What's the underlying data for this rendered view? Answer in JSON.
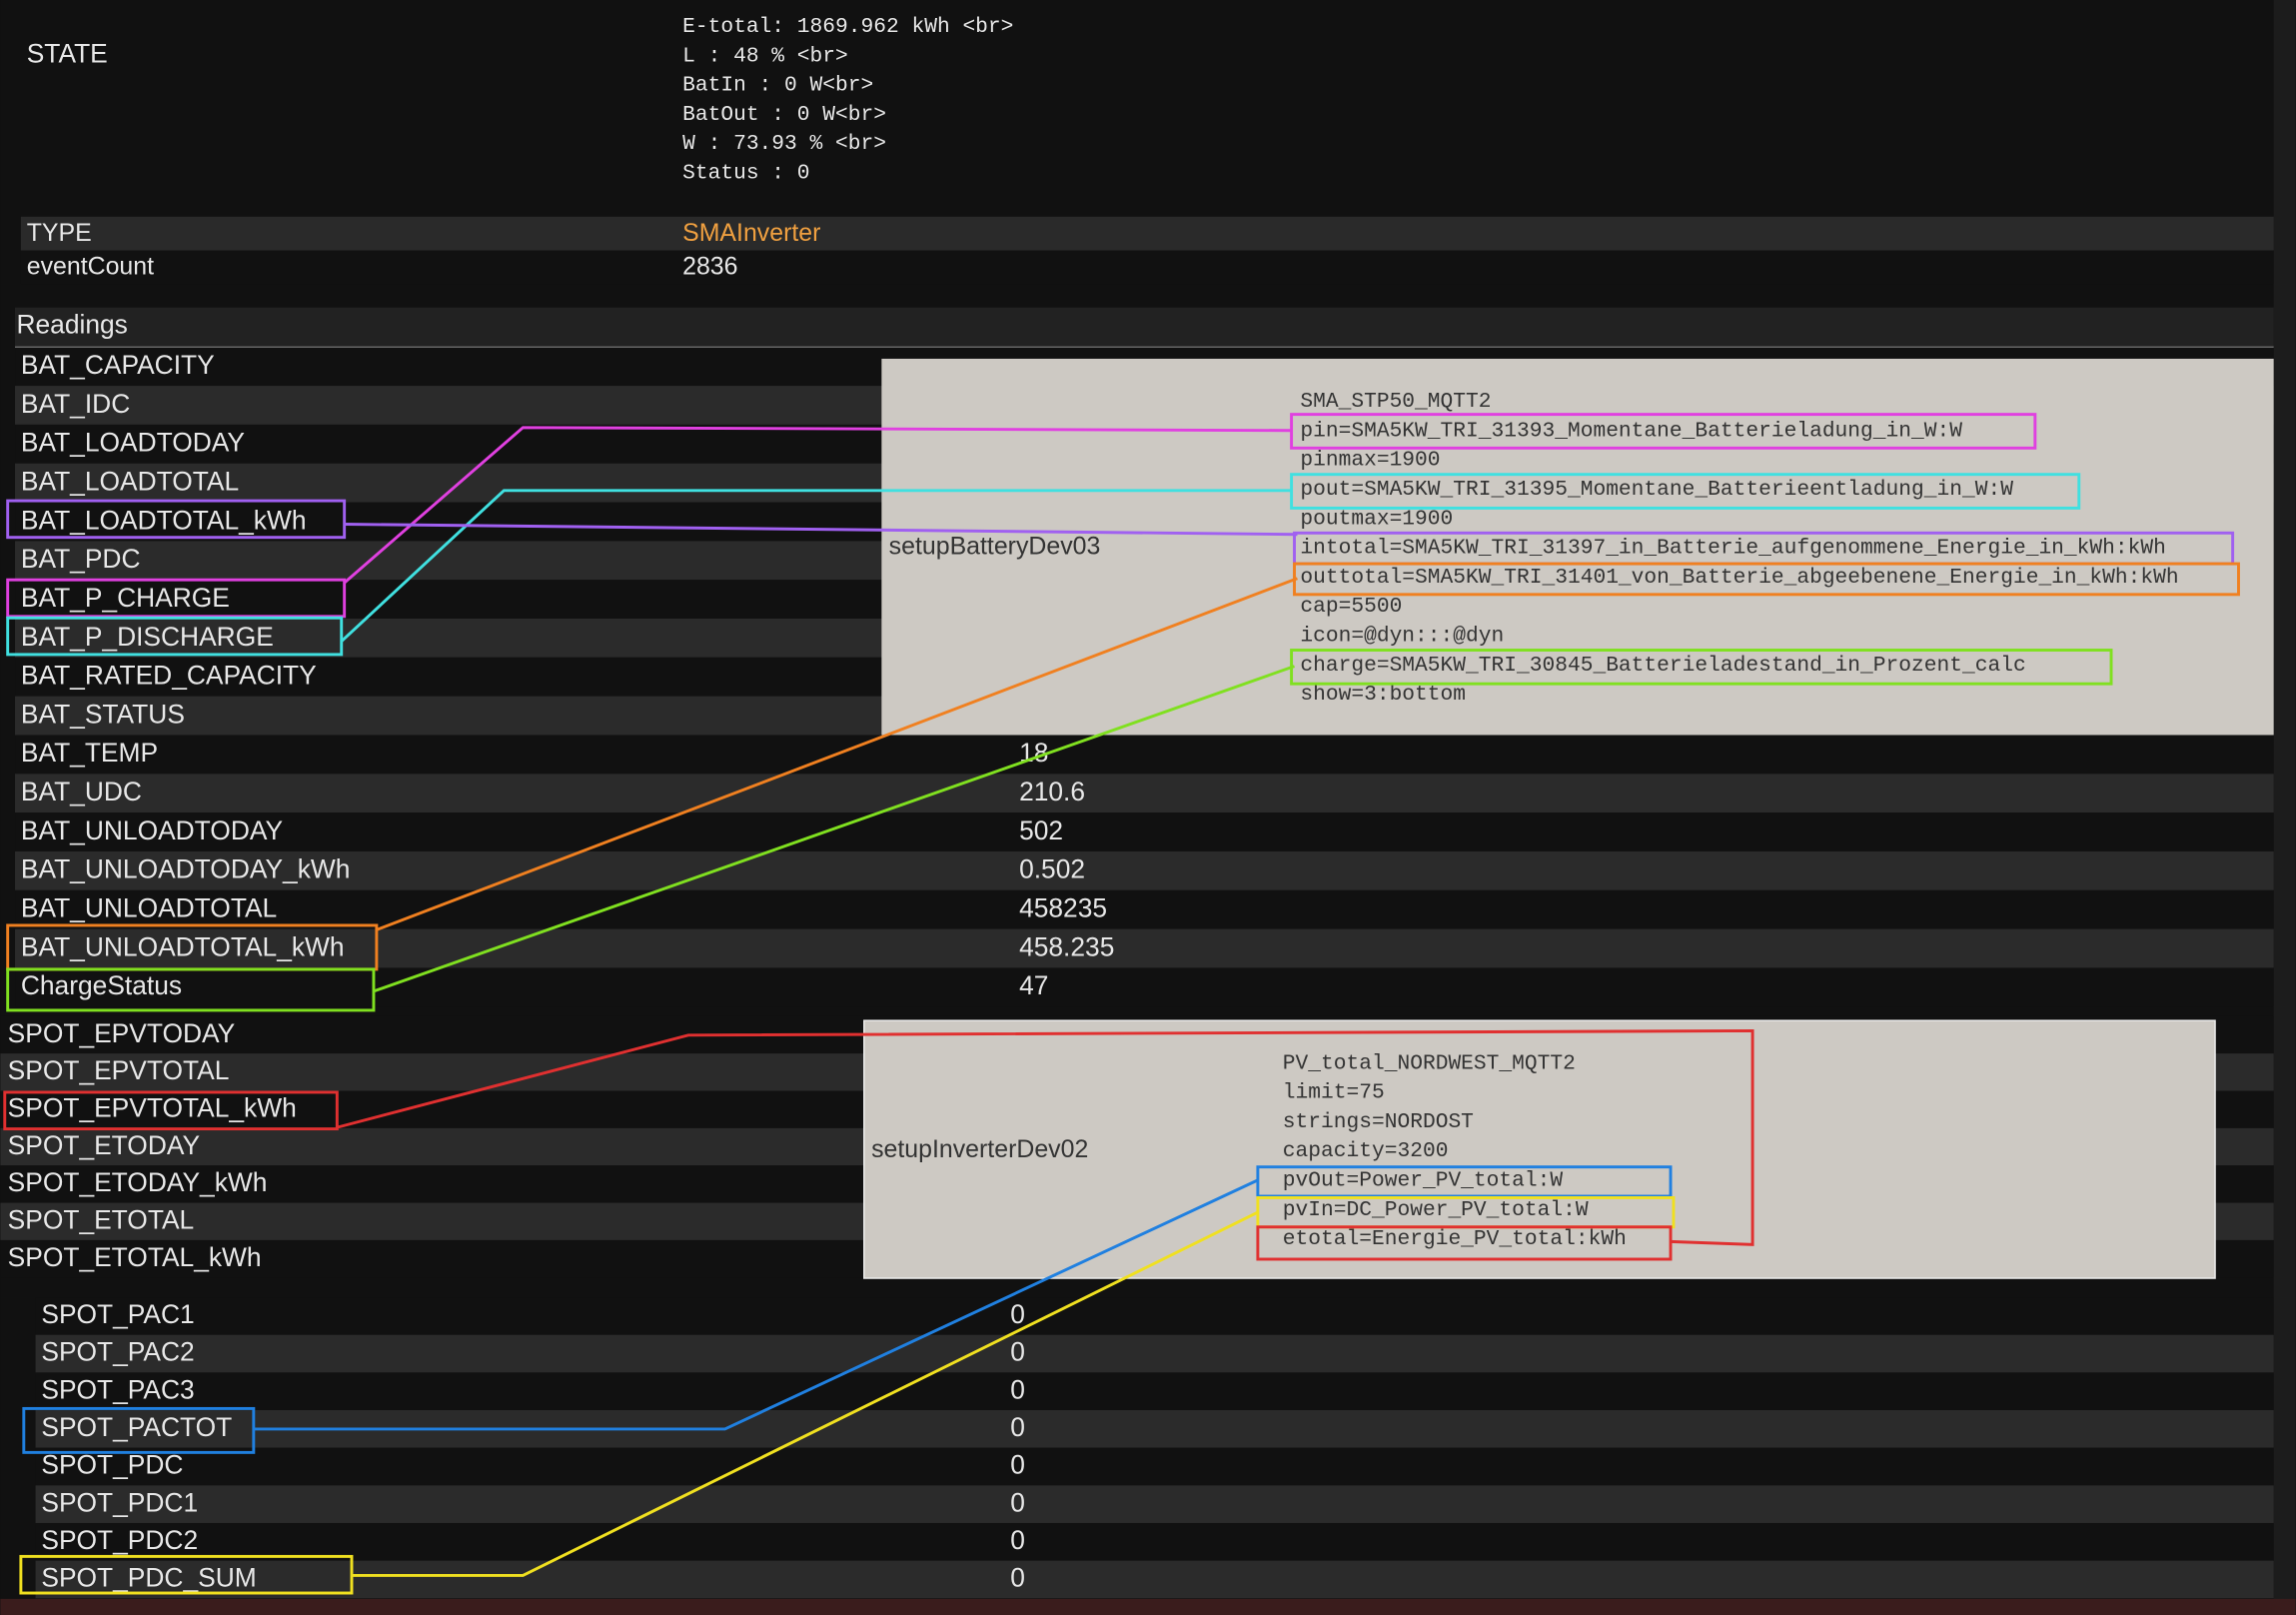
{
  "state": {
    "label": "STATE",
    "lines": [
      "E-total: 1869.962 kWh <br>",
      "L      : 48 % <br>",
      "BatIn  : 0 W<br>",
      "BatOut : 0 W<br>",
      "W      : 73.93 % <br>",
      "Status : 0"
    ]
  },
  "internals": [
    {
      "name": "TYPE",
      "value": "SMAInverter"
    },
    {
      "name": "eventCount",
      "value": "2836"
    }
  ],
  "readings_title": "Readings",
  "readings": [
    {
      "name": "BAT_CAPACITY"
    },
    {
      "name": "BAT_IDC"
    },
    {
      "name": "BAT_LOADTODAY"
    },
    {
      "name": "BAT_LOADTOTAL"
    },
    {
      "name": "BAT_LOADTOTAL_kWh"
    },
    {
      "name": "BAT_PDC"
    },
    {
      "name": "BAT_P_CHARGE"
    },
    {
      "name": "BAT_P_DISCHARGE"
    },
    {
      "name": "BAT_RATED_CAPACITY"
    },
    {
      "name": "BAT_STATUS"
    },
    {
      "name": "BAT_TEMP",
      "value": "18"
    },
    {
      "name": "BAT_UDC",
      "value": "210.6"
    },
    {
      "name": "BAT_UNLOADTODAY",
      "value": "502"
    },
    {
      "name": "BAT_UNLOADTODAY_kWh",
      "value": "0.502"
    },
    {
      "name": "BAT_UNLOADTOTAL",
      "value": "458235"
    },
    {
      "name": "BAT_UNLOADTOTAL_kWh",
      "value": "458.235"
    },
    {
      "name": "ChargeStatus",
      "value": "47"
    }
  ],
  "battery_setup": {
    "label": "setupBatteryDev03",
    "lines": [
      "SMA_STP50_MQTT2",
      "pin=SMA5KW_TRI_31393_Momentane_Batterieladung_in_W:W",
      "pinmax=1900",
      "pout=SMA5KW_TRI_31395_Momentane_Batterieentladung_in_W:W",
      "poutmax=1900",
      "intotal=SMA5KW_TRI_31397_in_Batterie_aufgenommene_Energie_in_kWh:kWh",
      "outtotal=SMA5KW_TRI_31401_von_Batterie_abgeebenene_Energie_in_kWh:kWh",
      "cap=5500",
      "icon=@dyn:::@dyn",
      "charge=SMA5KW_TRI_30845_Batterieladestand_in_Prozent_calc",
      "show=3:bottom"
    ]
  },
  "spot_readings": [
    "SPOT_EPVTODAY",
    "SPOT_EPVTOTAL",
    "SPOT_EPVTOTAL_kWh",
    "SPOT_ETODAY",
    "SPOT_ETODAY_kWh",
    "SPOT_ETOTAL",
    "SPOT_ETOTAL_kWh"
  ],
  "inverter_setup": {
    "label": "setupInverterDev02",
    "lines": [
      "PV_total_NORDWEST_MQTT2",
      "limit=75",
      "strings=NORDOST",
      "capacity=3200",
      "pvOut=Power_PV_total:W",
      "pvIn=DC_Power_PV_total:W",
      "etotal=Energie_PV_total:kWh"
    ]
  },
  "spot_values": [
    {
      "name": "SPOT_PAC1",
      "value": "0"
    },
    {
      "name": "SPOT_PAC2",
      "value": "0"
    },
    {
      "name": "SPOT_PAC3",
      "value": "0"
    },
    {
      "name": "SPOT_PACTOT",
      "value": "0"
    },
    {
      "name": "SPOT_PDC",
      "value": "0"
    },
    {
      "name": "SPOT_PDC1",
      "value": "0"
    },
    {
      "name": "SPOT_PDC2",
      "value": "0"
    },
    {
      "name": "SPOT_PDC_SUM",
      "value": "0"
    }
  ]
}
